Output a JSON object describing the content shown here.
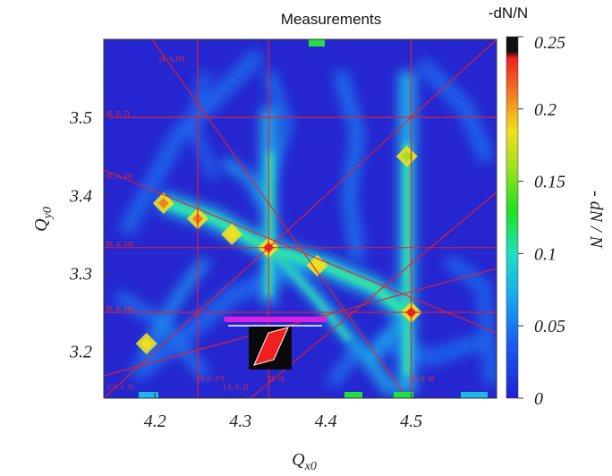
{
  "chart_data": {
    "type": "heatmap",
    "title": "Measurements",
    "xlabel": "Q_x0",
    "ylabel": "Q_y0",
    "xlim": [
      4.14,
      4.6
    ],
    "ylim": [
      3.14,
      3.6
    ],
    "x_ticks": [
      "4.2",
      "4.3",
      "4.4",
      "4.5"
    ],
    "x_tick_values": [
      4.2,
      4.3,
      4.4,
      4.5
    ],
    "y_ticks": [
      "3.2",
      "3.3",
      "3.4",
      "3.5"
    ],
    "y_tick_values": [
      3.2,
      3.3,
      3.4,
      3.5
    ],
    "colorbar": {
      "title": "-dN/N",
      "label": "- dN / N",
      "range": [
        0,
        0.25
      ],
      "tick_labels": [
        "0",
        "0.05",
        "0.1",
        "0.15",
        "0.2",
        "0.25"
      ],
      "tick_values": [
        0,
        0.05,
        0.1,
        0.15,
        0.2,
        0.25
      ],
      "colors": [
        "#2020d8",
        "#1a5cf0",
        "#18a8f0",
        "#20e0c0",
        "#20e020",
        "#a0e020",
        "#f0e020",
        "#f08020",
        "#f02020",
        "#101010"
      ]
    },
    "grid_lines": {
      "vertical_x": [
        4.25,
        4.333,
        4.5
      ],
      "horizontal_y": [
        3.25,
        3.333,
        3.5
      ],
      "color": "#e8202a"
    },
    "resonance_labels": [
      {
        "text": "(0, 2, 7)",
        "x": 4.143,
        "y": 3.5
      },
      {
        "text": "(1, 2, 11)",
        "x": 4.143,
        "y": 3.42
      },
      {
        "text": "(0, 3, 10)",
        "x": 4.143,
        "y": 3.333
      },
      {
        "text": "(0, 4, 13)",
        "x": 4.143,
        "y": 3.25
      },
      {
        "text": "(3,-1,10)",
        "x": 4.205,
        "y": 3.57
      },
      {
        "text": "(4, 0, 17)",
        "x": 4.25,
        "y": 3.16
      },
      {
        "text": "(-1, 2, 2)",
        "x": 4.28,
        "y": 3.15
      },
      {
        "text": "(3, 0)",
        "x": 4.333,
        "y": 3.16
      },
      {
        "text": "(2, 0, 9)",
        "x": 4.5,
        "y": 3.16
      },
      {
        "text": "(-1, 1, 1)",
        "x": 4.145,
        "y": 3.15
      }
    ],
    "hot_spots": [
      {
        "x": 4.333,
        "y": 3.333,
        "value": 0.24
      },
      {
        "x": 4.5,
        "y": 3.25,
        "value": 0.23
      },
      {
        "x": 4.21,
        "y": 3.39,
        "value": 0.22
      },
      {
        "x": 4.25,
        "y": 3.37,
        "value": 0.2
      },
      {
        "x": 4.29,
        "y": 3.35,
        "value": 0.19
      },
      {
        "x": 4.39,
        "y": 3.31,
        "value": 0.18
      },
      {
        "x": 4.19,
        "y": 3.21,
        "value": 0.17
      },
      {
        "x": 4.495,
        "y": 3.45,
        "value": 0.16
      }
    ]
  }
}
